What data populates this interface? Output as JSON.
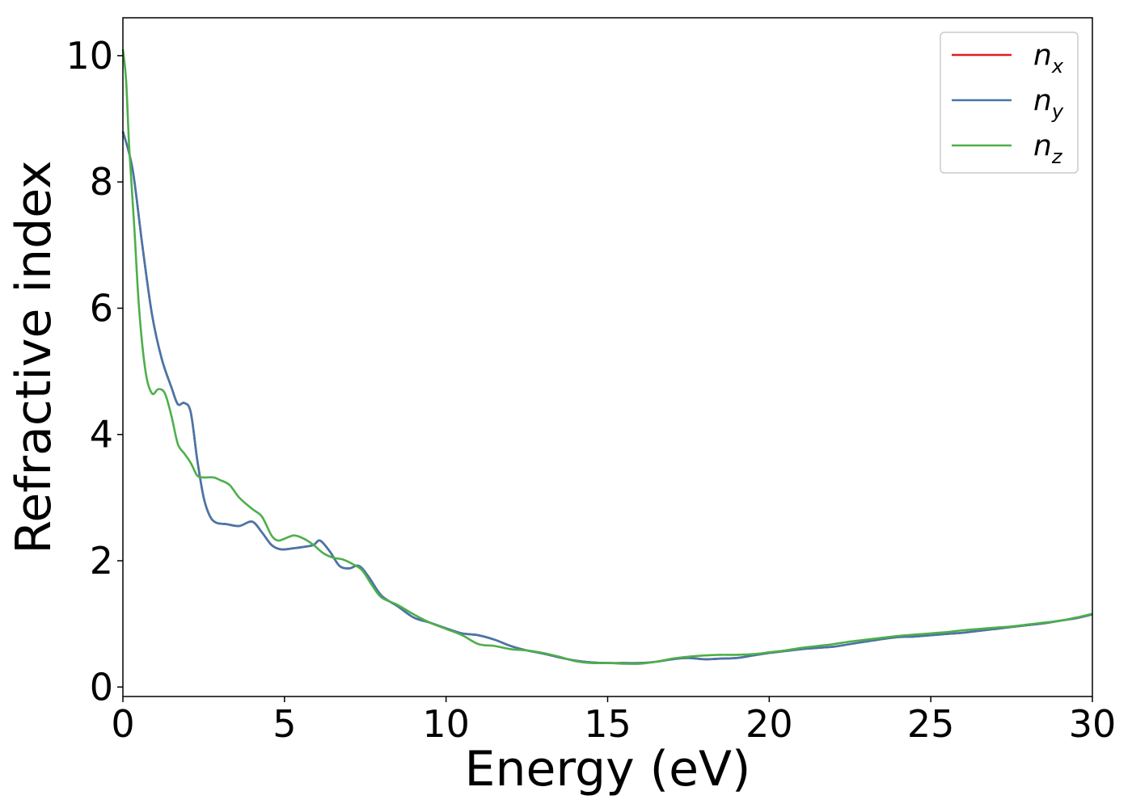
{
  "chart_data": {
    "type": "line",
    "xlabel": "Energy (eV)",
    "ylabel": "Refractive index",
    "xlim": [
      0,
      30
    ],
    "ylim": [
      -0.15,
      10.6
    ],
    "xticks": [
      0,
      5,
      10,
      15,
      20,
      25,
      30
    ],
    "yticks": [
      0,
      2,
      4,
      6,
      8,
      10
    ],
    "grid": false,
    "legend_position": "top-right",
    "series": [
      {
        "name": "n",
        "subscript": "x",
        "color": "#e41a1c",
        "x": [
          0,
          0.3,
          0.6,
          0.9,
          1.2,
          1.5,
          1.7,
          1.9,
          2.1,
          2.3,
          2.5,
          2.7,
          2.9,
          3.2,
          3.6,
          4.0,
          4.3,
          4.6,
          4.9,
          5.3,
          5.6,
          5.9,
          6.1,
          6.4,
          6.7,
          7.0,
          7.3,
          7.6,
          8.0,
          8.5,
          9.0,
          9.5,
          10.0,
          10.5,
          11.0,
          11.5,
          12.0,
          12.5,
          13.0,
          13.5,
          14.0,
          14.5,
          15.0,
          15.5,
          16.0,
          16.5,
          17.0,
          17.5,
          18.0,
          18.5,
          19.0,
          19.5,
          20.0,
          20.5,
          21.0,
          21.5,
          22.0,
          22.5,
          23.0,
          23.5,
          24.0,
          24.5,
          25.0,
          25.5,
          26.0,
          26.5,
          27.0,
          27.5,
          28.0,
          28.5,
          29.0,
          29.5,
          30.0
        ],
        "y": [
          8.8,
          8.2,
          7.0,
          5.9,
          5.2,
          4.75,
          4.48,
          4.5,
          4.35,
          3.6,
          3.0,
          2.7,
          2.6,
          2.58,
          2.55,
          2.62,
          2.45,
          2.25,
          2.18,
          2.2,
          2.22,
          2.25,
          2.32,
          2.15,
          1.92,
          1.88,
          1.92,
          1.75,
          1.45,
          1.28,
          1.1,
          1.02,
          0.93,
          0.85,
          0.82,
          0.75,
          0.65,
          0.58,
          0.53,
          0.47,
          0.42,
          0.39,
          0.38,
          0.38,
          0.38,
          0.4,
          0.44,
          0.46,
          0.44,
          0.45,
          0.46,
          0.5,
          0.54,
          0.57,
          0.6,
          0.62,
          0.64,
          0.68,
          0.72,
          0.76,
          0.79,
          0.8,
          0.82,
          0.84,
          0.86,
          0.89,
          0.92,
          0.95,
          0.98,
          1.01,
          1.05,
          1.09,
          1.15
        ]
      },
      {
        "name": "n",
        "subscript": "y",
        "color": "#4477aa",
        "x": [
          0,
          0.3,
          0.6,
          0.9,
          1.2,
          1.5,
          1.7,
          1.9,
          2.1,
          2.3,
          2.5,
          2.7,
          2.9,
          3.2,
          3.6,
          4.0,
          4.3,
          4.6,
          4.9,
          5.3,
          5.6,
          5.9,
          6.1,
          6.4,
          6.7,
          7.0,
          7.3,
          7.6,
          8.0,
          8.5,
          9.0,
          9.5,
          10.0,
          10.5,
          11.0,
          11.5,
          12.0,
          12.5,
          13.0,
          13.5,
          14.0,
          14.5,
          15.0,
          15.5,
          16.0,
          16.5,
          17.0,
          17.5,
          18.0,
          18.5,
          19.0,
          19.5,
          20.0,
          20.5,
          21.0,
          21.5,
          22.0,
          22.5,
          23.0,
          23.5,
          24.0,
          24.5,
          25.0,
          25.5,
          26.0,
          26.5,
          27.0,
          27.5,
          28.0,
          28.5,
          29.0,
          29.5,
          30.0
        ],
        "y": [
          8.8,
          8.2,
          7.0,
          5.9,
          5.2,
          4.75,
          4.48,
          4.5,
          4.35,
          3.6,
          3.0,
          2.7,
          2.6,
          2.58,
          2.55,
          2.62,
          2.45,
          2.25,
          2.18,
          2.2,
          2.22,
          2.25,
          2.32,
          2.15,
          1.92,
          1.88,
          1.92,
          1.75,
          1.45,
          1.28,
          1.1,
          1.02,
          0.93,
          0.85,
          0.82,
          0.75,
          0.65,
          0.58,
          0.53,
          0.47,
          0.42,
          0.39,
          0.38,
          0.38,
          0.38,
          0.4,
          0.44,
          0.46,
          0.44,
          0.45,
          0.46,
          0.5,
          0.54,
          0.57,
          0.6,
          0.62,
          0.64,
          0.68,
          0.72,
          0.76,
          0.79,
          0.8,
          0.82,
          0.84,
          0.86,
          0.89,
          0.92,
          0.95,
          0.98,
          1.01,
          1.05,
          1.09,
          1.15
        ]
      },
      {
        "name": "n",
        "subscript": "z",
        "color": "#4daf4a",
        "x": [
          0,
          0.1,
          0.2,
          0.35,
          0.5,
          0.7,
          0.9,
          1.1,
          1.3,
          1.5,
          1.7,
          1.9,
          2.1,
          2.3,
          2.5,
          2.8,
          3.0,
          3.3,
          3.6,
          4.0,
          4.3,
          4.6,
          4.8,
          5.0,
          5.3,
          5.6,
          5.9,
          6.2,
          6.5,
          6.8,
          7.1,
          7.4,
          7.7,
          8.0,
          8.5,
          9.0,
          9.5,
          10.0,
          10.5,
          11.0,
          11.5,
          12.0,
          12.5,
          13.0,
          13.5,
          14.0,
          14.5,
          15.0,
          15.5,
          16.0,
          16.5,
          17.0,
          17.5,
          18.0,
          18.5,
          19.0,
          19.5,
          20.0,
          20.5,
          21.0,
          21.5,
          22.0,
          22.5,
          23.0,
          23.5,
          24.0,
          24.5,
          25.0,
          25.5,
          26.0,
          26.5,
          27.0,
          27.5,
          28.0,
          28.5,
          29.0,
          29.5,
          30.0
        ],
        "y": [
          10.1,
          9.6,
          8.5,
          7.3,
          6.0,
          5.0,
          4.65,
          4.72,
          4.65,
          4.3,
          3.85,
          3.7,
          3.55,
          3.35,
          3.32,
          3.32,
          3.28,
          3.2,
          3.0,
          2.82,
          2.7,
          2.4,
          2.32,
          2.35,
          2.4,
          2.35,
          2.25,
          2.12,
          2.05,
          2.02,
          1.95,
          1.85,
          1.62,
          1.42,
          1.3,
          1.15,
          1.02,
          0.92,
          0.82,
          0.68,
          0.65,
          0.6,
          0.58,
          0.54,
          0.48,
          0.41,
          0.38,
          0.38,
          0.37,
          0.37,
          0.4,
          0.45,
          0.48,
          0.5,
          0.51,
          0.51,
          0.52,
          0.55,
          0.58,
          0.62,
          0.65,
          0.68,
          0.72,
          0.75,
          0.78,
          0.81,
          0.83,
          0.85,
          0.87,
          0.9,
          0.92,
          0.94,
          0.96,
          0.99,
          1.02,
          1.05,
          1.1,
          1.16
        ]
      }
    ]
  }
}
